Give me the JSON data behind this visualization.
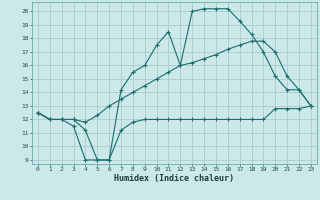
{
  "xlabel": "Humidex (Indice chaleur)",
  "bg_color": "#cce8e8",
  "grid_color": "#aacccc",
  "line_color": "#1a6e6e",
  "xlim": [
    -0.5,
    23.5
  ],
  "ylim": [
    8.7,
    20.7
  ],
  "yticks": [
    9,
    10,
    11,
    12,
    13,
    14,
    15,
    16,
    17,
    18,
    19,
    20
  ],
  "xticks": [
    0,
    1,
    2,
    3,
    4,
    5,
    6,
    7,
    8,
    9,
    10,
    11,
    12,
    13,
    14,
    15,
    16,
    17,
    18,
    19,
    20,
    21,
    22,
    23
  ],
  "line1_x": [
    0,
    1,
    2,
    3,
    4,
    5,
    6,
    7,
    8,
    9,
    10,
    11,
    12,
    13,
    14,
    15,
    16,
    17,
    18,
    19,
    20,
    21,
    22,
    23
  ],
  "line1_y": [
    12.5,
    12.0,
    12.0,
    11.5,
    9.0,
    9.0,
    9.0,
    11.2,
    11.8,
    12.0,
    12.0,
    12.0,
    12.0,
    12.0,
    12.0,
    12.0,
    12.0,
    12.0,
    12.0,
    12.0,
    12.8,
    12.8,
    12.8,
    13.0
  ],
  "line2_x": [
    0,
    1,
    2,
    3,
    4,
    5,
    6,
    7,
    8,
    9,
    10,
    11,
    12,
    13,
    14,
    15,
    16,
    17,
    18,
    19,
    20,
    21,
    22,
    23
  ],
  "line2_y": [
    12.5,
    12.0,
    12.0,
    12.0,
    11.2,
    9.0,
    9.0,
    14.2,
    15.5,
    16.0,
    17.5,
    18.5,
    16.0,
    20.0,
    20.2,
    20.2,
    20.2,
    19.3,
    18.3,
    17.0,
    15.2,
    14.2,
    14.2,
    13.0
  ],
  "line3_x": [
    0,
    1,
    2,
    3,
    4,
    5,
    6,
    7,
    8,
    9,
    10,
    11,
    12,
    13,
    14,
    15,
    16,
    17,
    18,
    19,
    20,
    21,
    22,
    23
  ],
  "line3_y": [
    12.5,
    12.0,
    12.0,
    12.0,
    11.8,
    12.3,
    13.0,
    13.5,
    14.0,
    14.5,
    15.0,
    15.5,
    16.0,
    16.2,
    16.5,
    16.8,
    17.2,
    17.5,
    17.8,
    17.8,
    17.0,
    15.2,
    14.2,
    13.0
  ]
}
